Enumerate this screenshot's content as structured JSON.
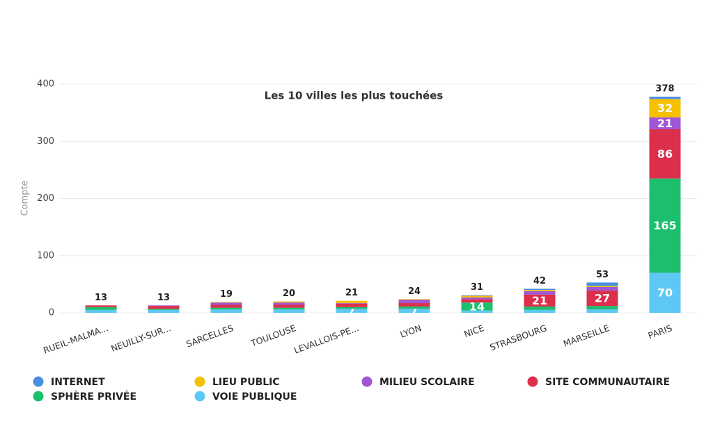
{
  "chart_data": {
    "type": "stacked_bar",
    "title": "Les 10 villes les plus touchées",
    "y_label": "Compte",
    "categories": [
      "RUEIL-MALMA...",
      "NEUILLY-SUR...",
      "SARCELLES",
      "TOULOUSE",
      "LEVALLOIS-PE...",
      "LYON",
      "NICE",
      "STRASBOURG",
      "MARSEILLE",
      "PARIS"
    ],
    "series": [
      {
        "name": "INTERNET",
        "color": "#4a8fe0",
        "values": [
          0,
          0,
          0,
          0,
          0,
          0,
          1,
          2,
          6,
          4
        ]
      },
      {
        "name": "LIEU PUBLIC",
        "color": "#f5c000",
        "values": [
          0,
          0,
          1,
          2,
          4,
          1,
          3,
          2,
          2,
          32
        ]
      },
      {
        "name": "MILIEU SCOLAIRE",
        "color": "#a056d6",
        "values": [
          0,
          1,
          4,
          4,
          1,
          6,
          3,
          6,
          6,
          21
        ]
      },
      {
        "name": "SITE COMMUNAUTAIRE",
        "color": "#dc2f4b",
        "values": [
          3,
          5,
          5,
          5,
          6,
          6,
          6,
          21,
          27,
          86
        ]
      },
      {
        "name": "SPHÈRE PRIVÉE",
        "color": "#1cbf6d",
        "values": [
          5,
          2,
          3,
          3,
          3,
          4,
          14,
          6,
          6,
          165
        ]
      },
      {
        "name": "VOIE PUBLIQUE",
        "color": "#5ec8f5",
        "values": [
          5,
          5,
          6,
          6,
          7,
          7,
          4,
          5,
          6,
          70
        ]
      }
    ],
    "totals": [
      13,
      13,
      19,
      20,
      21,
      24,
      31,
      42,
      53,
      378
    ],
    "ylim": [
      0,
      400
    ],
    "yticks": [
      0,
      100,
      200,
      300,
      400
    ],
    "grid": true,
    "legend": "bottom"
  }
}
